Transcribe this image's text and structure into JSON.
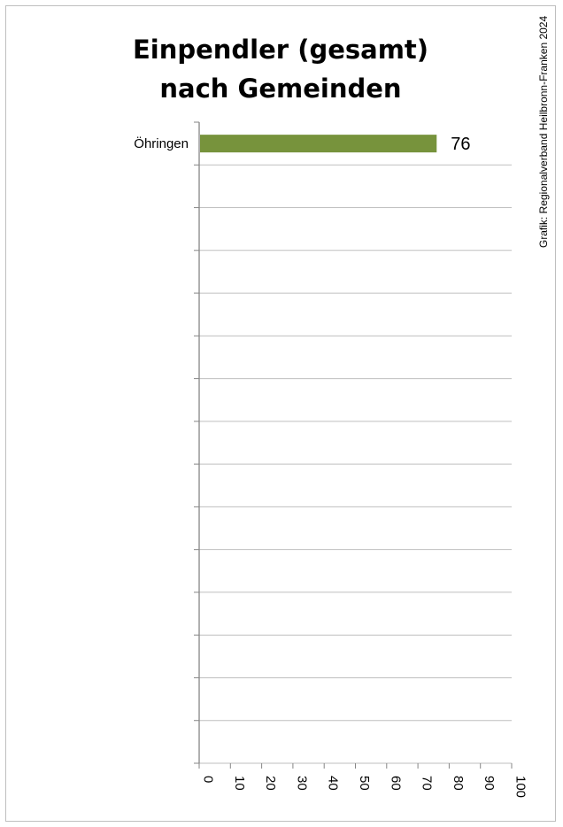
{
  "credit": "Grafik: Regionalverband Heilbronn-Franken 2024",
  "chart_data": {
    "type": "bar",
    "orientation": "horizontal",
    "title": "Einpendler (gesamt) nach Gemeinden",
    "title_lines": [
      "Einpendler (gesamt)",
      "nach Gemeinden"
    ],
    "categories": [
      "Öhringen"
    ],
    "values": [
      76
    ],
    "category_slots": 15,
    "xlim": [
      0,
      100
    ],
    "x_ticks": [
      "0",
      "10",
      "20",
      "30",
      "40",
      "50",
      "60",
      "70",
      "80",
      "90",
      "100"
    ],
    "grid": true,
    "bar_color": "#77933c",
    "data_labels": [
      "76"
    ]
  }
}
